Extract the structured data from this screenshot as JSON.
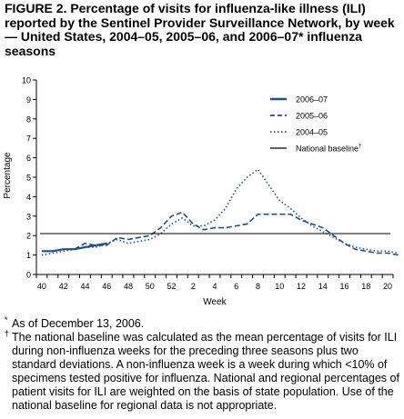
{
  "figure": {
    "title": "FIGURE 2. Percentage of visits for influenza-like illness (ILI) reported by the Sentinel Provider Surveillance Network, by week — United States, 2004–05, 2005–06, and 2006–07* influenza seasons"
  },
  "footnotes": [
    {
      "mark": "*",
      "text": "As of December 13, 2006."
    },
    {
      "mark": "†",
      "text": "The national baseline was calculated as the mean percentage of visits for ILI during non-influenza weeks for the preceding three seasons plus two standard deviations. A non-influenza week is a week during which <10% of specimens tested positive for influenza. National and regional percentages of patient visits for ILI are weighted on the basis of state population. Use of the national baseline for regional data is not appropriate."
    }
  ],
  "chart_data": {
    "type": "line",
    "xlabel": "Week",
    "ylabel": "Percentage",
    "ylim": [
      0,
      10
    ],
    "y_ticks": [
      "0",
      "1",
      "2",
      "3",
      "4",
      "5",
      "6",
      "7",
      "8",
      "9",
      "10"
    ],
    "x_tick_labels": [
      "40",
      "42",
      "44",
      "46",
      "48",
      "50",
      "52",
      "2",
      "4",
      "6",
      "8",
      "10",
      "12",
      "14",
      "16",
      "18",
      "20"
    ],
    "x_tick_count": 33,
    "legend_position": "top-right",
    "colors": {
      "2006–07": "#1f4e96",
      "2005–06": "#1f4e96",
      "2004–05": "#1f4e96",
      "baseline": "#000000"
    },
    "series": [
      {
        "name": "2006–07",
        "style": "solid",
        "values": [
          1.2,
          1.2,
          1.3,
          1.3,
          1.4,
          1.5,
          1.6
        ]
      },
      {
        "name": "2005–06",
        "style": "dashed",
        "values": [
          1.2,
          1.2,
          1.3,
          1.3,
          1.6,
          1.5,
          1.5,
          1.9,
          1.8,
          1.9,
          2.0,
          2.4,
          3.0,
          3.2,
          2.6,
          2.3,
          2.4,
          2.4,
          2.5,
          2.6,
          3.1,
          3.1,
          3.1,
          3.1,
          2.8,
          2.6,
          2.4,
          2.0,
          1.6,
          1.3,
          1.2,
          1.1,
          1.1,
          1.0
        ]
      },
      {
        "name": "2004–05",
        "style": "dotted",
        "values": [
          1.0,
          1.1,
          1.2,
          1.3,
          1.4,
          1.4,
          1.6,
          1.8,
          1.6,
          1.7,
          1.8,
          2.1,
          2.6,
          2.9,
          2.5,
          2.5,
          2.8,
          3.4,
          4.4,
          5.0,
          5.4,
          4.6,
          3.8,
          3.4,
          2.9,
          2.5,
          2.2,
          1.9,
          1.6,
          1.4,
          1.3,
          1.2,
          1.2,
          1.1
        ]
      },
      {
        "name": "National baseline",
        "marker": "†",
        "style": "baseline",
        "constant": 2.1
      }
    ]
  }
}
